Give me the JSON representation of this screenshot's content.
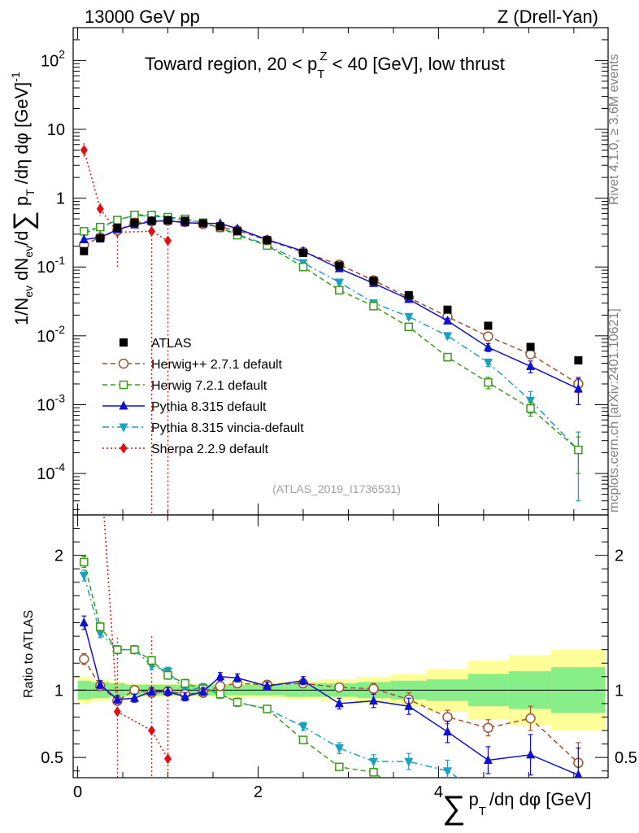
{
  "header": {
    "energy": "13000 GeV pp",
    "process": "Z (Drell-Yan)",
    "region_prefix": "Toward region, 20 < p",
    "region_sup": "Z",
    "region_sub": "T",
    "region_suffix": " < 40 [GeV], low thrust"
  },
  "side": {
    "rivet": "Rivet 4.1.0, ≥ 3.6M events",
    "mcplots": "mcplots.cern.ch [arXiv:2401.10621]"
  },
  "analysis_ref": "(ATLAS_2019_I1736531)",
  "ylabel_main": "1/N_ev dN_ev/d∑ p_T/dη dφ [GeV]^-1",
  "ylabel_main_parts": {
    "a": "1/N",
    "a_sub": "ev",
    "b": " dN",
    "b_sub": "ev",
    "c": "/d",
    "sigma": "∑",
    "d": " p",
    "d_sub": "T",
    "e": " /dη dφ  [GeV]",
    "e_sup": "-1"
  },
  "ylabel_ratio": "Ratio to ATLAS",
  "xlabel": "∑ p_T /dη dφ [GeV]",
  "xlabel_parts": {
    "sigma": "∑",
    "p": "p",
    "sub": "T",
    "rest": "/dη dφ [GeV]"
  },
  "colors": {
    "atlas": "#000000",
    "herwigpp": "#a0522d",
    "herwig7": "#3a9a1a",
    "pythia": "#1010d0",
    "vincia": "#1aa0c0",
    "sherpa": "#e01010",
    "band_outer": "#ffff99",
    "band_inner": "#88ee88"
  },
  "chart_data": [
    {
      "type": "scatter",
      "panel": "main",
      "yscale": "log",
      "xlim": [
        -0.05,
        5.88
      ],
      "ylim": [
        2.5e-05,
        300
      ],
      "x_ticks": [
        0,
        2,
        4
      ],
      "x_tick_labels": [
        "0",
        "2",
        "4"
      ],
      "y_ticks": [
        0.0001,
        0.001,
        0.01,
        0.1,
        1,
        10,
        100
      ],
      "y_tick_labels": [
        {
          "base": "10",
          "exp": "-4"
        },
        {
          "base": "10",
          "exp": "-3"
        },
        {
          "base": "10",
          "exp": "-2"
        },
        {
          "base": "10",
          "exp": "-1"
        },
        {
          "base": "1",
          "exp": ""
        },
        {
          "base": "10",
          "exp": ""
        },
        {
          "base": "10",
          "exp": "2"
        }
      ],
      "legend_position": "bottom-left",
      "series": [
        {
          "key": "atlas",
          "name": "ATLAS",
          "marker": "square",
          "line": "none",
          "x": [
            0.07,
            0.25,
            0.44,
            0.63,
            0.82,
            1.0,
            1.19,
            1.39,
            1.58,
            1.77,
            2.1,
            2.5,
            2.9,
            3.28,
            3.67,
            4.1,
            4.55,
            5.02,
            5.55
          ],
          "y": [
            0.17,
            0.26,
            0.37,
            0.44,
            0.47,
            0.48,
            0.47,
            0.43,
            0.39,
            0.33,
            0.245,
            0.16,
            0.105,
            0.063,
            0.039,
            0.024,
            0.014,
            0.0069,
            0.0044
          ],
          "err": [
            0.01,
            0.015,
            0.02,
            0.02,
            0.02,
            0.02,
            0.02,
            0.02,
            0.02,
            0.015,
            0.012,
            0.008,
            0.005,
            0.003,
            0.002,
            0.0013,
            0.0008,
            0.0004,
            0.0003
          ]
        },
        {
          "key": "herwigpp",
          "name": "Herwig++ 2.7.1 default",
          "marker": "open-circle",
          "line": "dashed",
          "x": [
            0.07,
            0.25,
            0.44,
            0.63,
            0.82,
            1.0,
            1.19,
            1.39,
            1.58,
            1.77,
            2.1,
            2.5,
            2.9,
            3.28,
            3.67,
            4.1,
            4.55,
            5.02,
            5.55
          ],
          "y": [
            0.21,
            0.27,
            0.34,
            0.44,
            0.46,
            0.47,
            0.45,
            0.42,
            0.38,
            0.34,
            0.245,
            0.165,
            0.108,
            0.064,
            0.036,
            0.019,
            0.0098,
            0.0054,
            0.002
          ],
          "err": [
            0.01,
            0.01,
            0.01,
            0.01,
            0.01,
            0.01,
            0.01,
            0.01,
            0.01,
            0.01,
            0.008,
            0.006,
            0.004,
            0.003,
            0.002,
            0.0012,
            0.0009,
            0.0007,
            0.0005
          ]
        },
        {
          "key": "herwig7",
          "name": "Herwig 7.2.1 default",
          "marker": "open-square",
          "line": "dashed",
          "x": [
            0.07,
            0.25,
            0.44,
            0.63,
            0.82,
            1.0,
            1.19,
            1.39,
            1.58,
            1.77,
            2.1,
            2.5,
            2.9,
            3.28,
            3.67,
            4.1,
            4.55,
            5.02,
            5.55
          ],
          "y": [
            0.33,
            0.38,
            0.48,
            0.57,
            0.57,
            0.53,
            0.5,
            0.44,
            0.37,
            0.29,
            0.205,
            0.1,
            0.046,
            0.027,
            0.0135,
            0.0049,
            0.0021,
            0.00088,
            0.00022
          ],
          "err": [
            0.01,
            0.01,
            0.01,
            0.01,
            0.01,
            0.01,
            0.01,
            0.01,
            0.01,
            0.01,
            0.008,
            0.005,
            0.003,
            0.002,
            0.0012,
            0.0006,
            0.0004,
            0.0002,
            0.00012
          ]
        },
        {
          "key": "pythia",
          "name": "Pythia 8.315 default",
          "marker": "triangle-up",
          "line": "solid",
          "x": [
            0.07,
            0.25,
            0.44,
            0.63,
            0.82,
            1.0,
            1.19,
            1.39,
            1.58,
            1.77,
            2.1,
            2.5,
            2.9,
            3.28,
            3.67,
            4.1,
            4.55,
            5.02,
            5.55
          ],
          "y": [
            0.25,
            0.27,
            0.35,
            0.41,
            0.46,
            0.47,
            0.44,
            0.43,
            0.43,
            0.36,
            0.25,
            0.17,
            0.095,
            0.058,
            0.034,
            0.0165,
            0.0068,
            0.0036,
            0.0017
          ],
          "err": [
            0.01,
            0.01,
            0.01,
            0.01,
            0.01,
            0.01,
            0.01,
            0.01,
            0.01,
            0.01,
            0.008,
            0.006,
            0.004,
            0.003,
            0.002,
            0.0015,
            0.0009,
            0.0007,
            0.0007
          ]
        },
        {
          "key": "vincia",
          "name": "Pythia 8.315 vincia-default",
          "marker": "triangle-down",
          "line": "dashdot",
          "x": [
            0.07,
            0.25,
            0.44,
            0.63,
            0.82,
            1.0,
            1.19,
            1.39,
            1.58,
            1.77,
            2.1,
            2.5,
            2.9,
            3.28,
            3.67,
            4.1,
            4.55,
            5.02,
            5.55
          ],
          "y": [
            0.31,
            0.37,
            0.48,
            0.56,
            0.55,
            0.52,
            0.48,
            0.44,
            0.37,
            0.3,
            0.21,
            0.115,
            0.06,
            0.03,
            0.019,
            0.01,
            0.0041,
            0.00115,
            0.00022
          ],
          "err": [
            0.01,
            0.01,
            0.01,
            0.01,
            0.01,
            0.01,
            0.01,
            0.01,
            0.01,
            0.01,
            0.008,
            0.005,
            0.003,
            0.002,
            0.0015,
            0.0008,
            0.0005,
            0.0004,
            0.00018
          ]
        },
        {
          "key": "sherpa",
          "name": "Sherpa 2.2.9 default",
          "marker": "diamond",
          "line": "dotted",
          "x": [
            0.07,
            0.25,
            0.44,
            0.82,
            1.0
          ],
          "y": [
            5.0,
            0.7,
            0.32,
            0.33,
            0.24
          ],
          "err": [
            1.3,
            0.15,
            0.22,
            0.33,
            0.24
          ]
        }
      ]
    },
    {
      "type": "scatter",
      "panel": "ratio",
      "yscale": "linear",
      "xlim": [
        -0.05,
        5.88
      ],
      "ylim": [
        0.35,
        2.3
      ],
      "y_ticks": [
        0.5,
        1,
        2
      ],
      "y_tick_labels": [
        "0.5",
        "1",
        "2"
      ],
      "bins": [
        0,
        0.15,
        0.35,
        0.53,
        0.72,
        0.91,
        1.1,
        1.29,
        1.48,
        1.68,
        1.87,
        2.3,
        2.7,
        3.1,
        3.47,
        3.87,
        4.33,
        4.78,
        5.25,
        5.85
      ],
      "band_inner": [
        0.07,
        0.06,
        0.05,
        0.04,
        0.04,
        0.04,
        0.04,
        0.04,
        0.04,
        0.04,
        0.04,
        0.05,
        0.05,
        0.06,
        0.07,
        0.08,
        0.12,
        0.14,
        0.17
      ],
      "band_outer": [
        0.1,
        0.08,
        0.06,
        0.05,
        0.05,
        0.05,
        0.05,
        0.05,
        0.05,
        0.06,
        0.06,
        0.07,
        0.08,
        0.1,
        0.12,
        0.16,
        0.22,
        0.26,
        0.3
      ],
      "series": [
        {
          "key": "herwigpp",
          "name": "Herwig++ 2.7.1 default",
          "x": [
            0.07,
            0.25,
            0.44,
            0.63,
            0.82,
            1.0,
            1.19,
            1.39,
            1.58,
            1.77,
            2.1,
            2.5,
            2.9,
            3.28,
            3.67,
            4.1,
            4.55,
            5.02,
            5.55
          ],
          "y": [
            1.23,
            1.03,
            0.92,
            1.0,
            0.98,
            0.99,
            0.97,
            0.98,
            1.03,
            1.05,
            1.04,
            1.05,
            1.02,
            1.01,
            0.93,
            0.8,
            0.72,
            0.79,
            0.46
          ],
          "err": [
            0.04,
            0.03,
            0.03,
            0.03,
            0.03,
            0.03,
            0.03,
            0.03,
            0.03,
            0.03,
            0.03,
            0.03,
            0.03,
            0.04,
            0.05,
            0.05,
            0.06,
            0.09,
            0.15
          ]
        },
        {
          "key": "herwig7",
          "name": "Herwig 7.2.1 default",
          "x": [
            0.07,
            0.25,
            0.44,
            0.63,
            0.82,
            1.0,
            1.19,
            1.39,
            1.58,
            1.77,
            2.1,
            2.5,
            2.9,
            3.28
          ],
          "y": [
            1.95,
            1.47,
            1.3,
            1.3,
            1.22,
            1.11,
            1.05,
            1.01,
            0.97,
            0.91,
            0.86,
            0.63,
            0.43,
            0.39
          ],
          "err": [
            0.04,
            0.03,
            0.03,
            0.03,
            0.03,
            0.03,
            0.03,
            0.03,
            0.03,
            0.03,
            0.02,
            0.02,
            0.02,
            0.02
          ]
        },
        {
          "key": "pythia",
          "name": "Pythia 8.315 default",
          "x": [
            0.07,
            0.25,
            0.44,
            0.63,
            0.82,
            1.0,
            1.19,
            1.39,
            1.58,
            1.77,
            2.1,
            2.5,
            2.9,
            3.28,
            3.67,
            4.1,
            4.55,
            5.02,
            5.55
          ],
          "y": [
            1.5,
            1.04,
            0.93,
            0.94,
            0.99,
            0.99,
            0.95,
            0.99,
            1.1,
            1.09,
            1.03,
            1.07,
            0.9,
            0.92,
            0.88,
            0.69,
            0.48,
            0.52,
            0.37
          ],
          "err": [
            0.05,
            0.03,
            0.03,
            0.03,
            0.03,
            0.03,
            0.03,
            0.03,
            0.03,
            0.03,
            0.03,
            0.03,
            0.04,
            0.05,
            0.06,
            0.08,
            0.1,
            0.15,
            0.2
          ]
        },
        {
          "key": "vincia",
          "name": "Pythia 8.315 vincia-default",
          "x": [
            0.07,
            0.25,
            0.44,
            0.63,
            0.82,
            1.0,
            1.19,
            1.39,
            1.58,
            1.77,
            2.1,
            2.5,
            2.9,
            3.28,
            3.67,
            4.1
          ],
          "y": [
            1.85,
            1.42,
            1.3,
            1.3,
            1.18,
            1.14,
            1.0,
            1.02,
            0.97,
            0.91,
            0.86,
            0.73,
            0.57,
            0.47,
            0.47,
            0.4
          ],
          "err": [
            0.04,
            0.03,
            0.03,
            0.03,
            0.03,
            0.03,
            0.03,
            0.03,
            0.03,
            0.03,
            0.02,
            0.03,
            0.04,
            0.05,
            0.06,
            0.08
          ]
        },
        {
          "key": "sherpa",
          "name": "Sherpa 2.2.9 default",
          "x": [
            0.44,
            0.82,
            1.0
          ],
          "y": [
            0.84,
            0.7,
            0.49
          ],
          "err": [
            0.55,
            0.7,
            0.5
          ]
        }
      ]
    }
  ]
}
